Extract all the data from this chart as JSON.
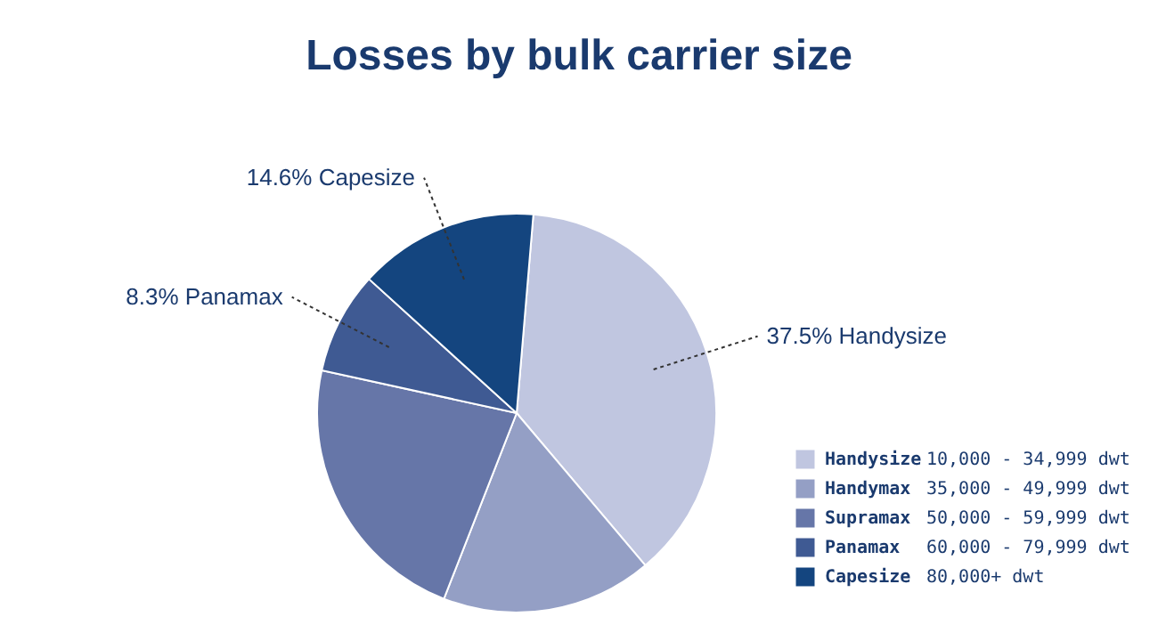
{
  "chart_data": {
    "type": "pie",
    "title": "Losses by bulk carrier size",
    "categories": [
      "Handysize",
      "Handymax",
      "Supramax",
      "Panamax",
      "Capesize"
    ],
    "values": [
      37.5,
      17.1,
      22.5,
      8.3,
      14.6
    ],
    "colors": [
      "#c0c6e0",
      "#949fc5",
      "#6676a8",
      "#3f5a93",
      "#14457f"
    ],
    "value_labels": [
      "37.5% Handysize",
      null,
      null,
      "8.3% Panamax",
      "14.6% Capesize"
    ],
    "annotations": [
      "10,000 - 34,999 dwt",
      "35,000 - 49,999 dwt",
      "50,000 - 59,999 dwt",
      "60,000 - 79,999 dwt",
      "80,000+ dwt"
    ],
    "legend": "bottom right"
  }
}
